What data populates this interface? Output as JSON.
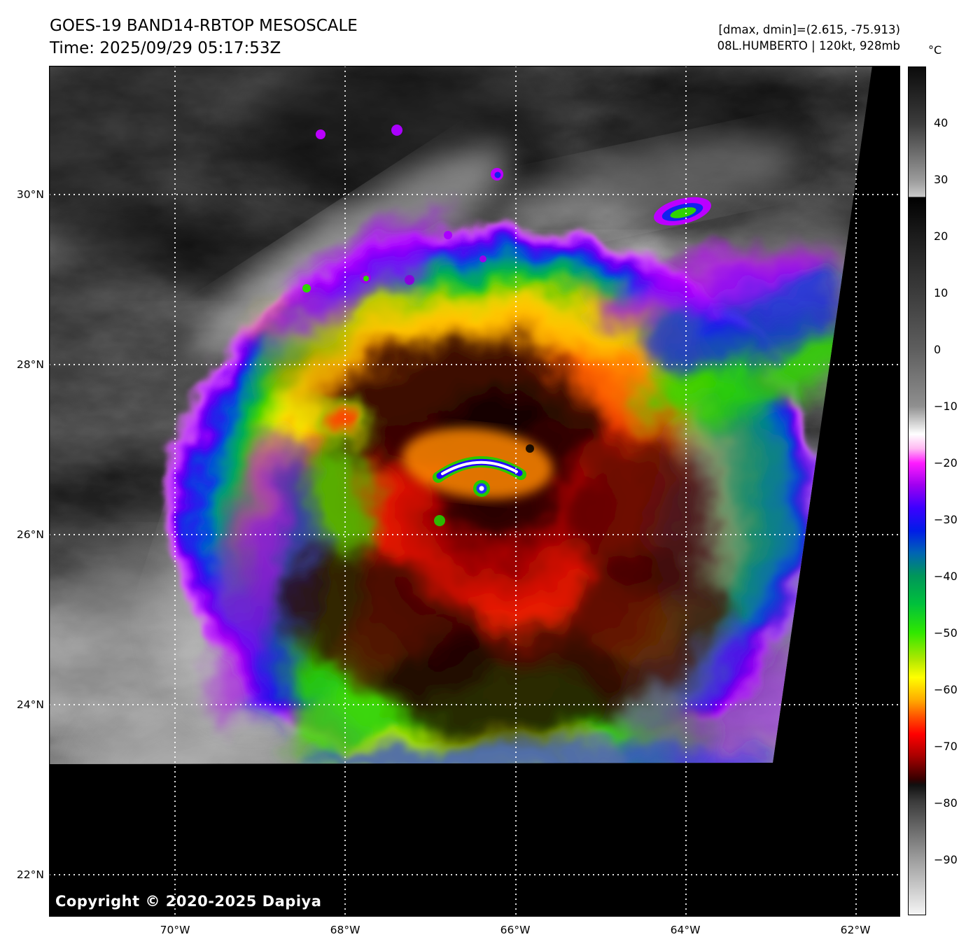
{
  "header": {
    "title": "GOES-19 BAND14-RBTOP MESOSCALE",
    "time_line": "Time: 2025/09/29 05:17:53Z",
    "range_line": "[dmax, dmin]=(2.615, -75.913)",
    "storm_line": "08L.HUMBERTO | 120kt, 928mb"
  },
  "colorbar": {
    "unit_label": "°C",
    "tick_labels": [
      "40",
      "30",
      "20",
      "10",
      "0",
      "−10",
      "−20",
      "−30",
      "−40",
      "−50",
      "−60",
      "−70",
      "−80",
      "−90"
    ],
    "gradient_stops": [
      [
        0.0,
        "#0b0b0b"
      ],
      [
        0.067,
        "#3c3c3c"
      ],
      [
        0.133,
        "#9a9a9a"
      ],
      [
        0.153,
        "#c9c9c9"
      ],
      [
        0.153,
        "#000000"
      ],
      [
        0.2,
        "#1c1c1c"
      ],
      [
        0.267,
        "#3c3c3c"
      ],
      [
        0.333,
        "#5e5e5e"
      ],
      [
        0.4,
        "#8f8f8f"
      ],
      [
        0.433,
        "#ffffff"
      ],
      [
        0.45,
        "#ffb9f2"
      ],
      [
        0.467,
        "#ff1cff"
      ],
      [
        0.493,
        "#a000f0"
      ],
      [
        0.52,
        "#3c00ff"
      ],
      [
        0.547,
        "#001ce8"
      ],
      [
        0.573,
        "#0064b4"
      ],
      [
        0.6,
        "#00965a"
      ],
      [
        0.633,
        "#00c03c"
      ],
      [
        0.667,
        "#2fe800"
      ],
      [
        0.7,
        "#b4e800"
      ],
      [
        0.72,
        "#ffff00"
      ],
      [
        0.747,
        "#ffaa00"
      ],
      [
        0.767,
        "#ff5000"
      ],
      [
        0.787,
        "#ff0000"
      ],
      [
        0.813,
        "#a80000"
      ],
      [
        0.84,
        "#370000"
      ],
      [
        0.847,
        "#101010"
      ],
      [
        0.867,
        "#3c3c3c"
      ],
      [
        0.933,
        "#9b9b9b"
      ],
      [
        1.0,
        "#f5f5f5"
      ]
    ]
  },
  "map": {
    "lat_labels": [
      "30°N",
      "28°N",
      "26°N",
      "24°N",
      "22°N"
    ],
    "lon_labels": [
      "70°W",
      "68°W",
      "66°W",
      "64°W",
      "62°W"
    ],
    "copyright": "Copyright © 2020-2025 Dapiya"
  },
  "palette": {
    "page_background": "#ffffff",
    "map_background": "#000000",
    "gridline": "#ffffff",
    "text": "#000000",
    "copyright_text": "#ffffff",
    "storm_core_dark": "#2a0000",
    "storm_red": "#ee2200",
    "storm_orange": "#ff7700",
    "storm_yellow": "#ffe000",
    "storm_green": "#2fd400",
    "storm_blue": "#1c2cf0",
    "storm_purple": "#a800ff",
    "cloud_gray": "#9a9a9a"
  }
}
